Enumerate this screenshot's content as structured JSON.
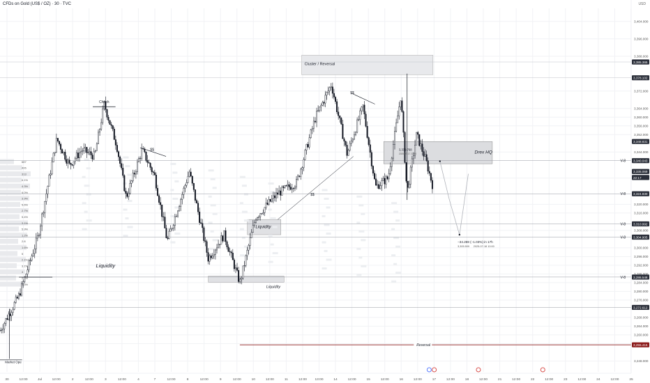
{
  "header": {
    "title": "CFDs on Gold (US$ / OZ) · 30 · TVC",
    "currency": "USD"
  },
  "chart_data": {
    "type": "candlestick",
    "series_label": "",
    "ylim": [
      3243,
      3410
    ],
    "y_ticks": [
      3404,
      3396,
      3388,
      3372,
      3364,
      3360,
      3356,
      3352,
      3344,
      3332,
      3320,
      3316,
      3308,
      3300,
      3296,
      3292,
      3288,
      3284,
      3280,
      3276,
      3268,
      3264,
      3260,
      3256,
      3248
    ],
    "y_tick_labels": [
      "3,404.000",
      "3,396.000",
      "3,388.000",
      "3,372.000",
      "3,364.000",
      "3,360.000",
      "3,356.000",
      "3,352.000",
      "3,344.000",
      "3,332.000",
      "3,320.000",
      "3,316.000",
      "3,308.000",
      "3,300.000",
      "3,296.000",
      "3,292.000",
      "3,288.000",
      "3,284.000",
      "3,280.000",
      "3,276.000",
      "3,268.000",
      "3,264.000",
      "3,260.000",
      "3,256.000",
      "3,248.000"
    ],
    "x_tick_labels": [
      "30",
      "12:00",
      "Jul",
      "12:00",
      "2",
      "12:00",
      "3",
      "12:00",
      "4",
      "7",
      "12:00",
      "8",
      "12:00",
      "9",
      "12:00",
      "10",
      "12:00",
      "11",
      "12:00",
      "13:00",
      "14",
      "12:00",
      "15",
      "12:00",
      "16",
      "12:00",
      "17",
      "12:00",
      "18",
      "12:00",
      "21",
      "12:00",
      "22",
      "12:00",
      "23",
      "12:00",
      "24",
      "12:00",
      "25"
    ],
    "price_tags": [
      {
        "label": "3,385.365",
        "value": 3385.365,
        "style": "dark"
      },
      {
        "label": "3,378.102",
        "value": 3378.102,
        "style": "dark"
      },
      {
        "label": "3,348.831",
        "value": 3348.831,
        "style": "dark"
      },
      {
        "label": "3,340.043",
        "value": 3340.043,
        "style": "dark"
      },
      {
        "label": "3,335.069",
        "value": 3335.069,
        "style": "dark"
      },
      {
        "label": "22:17",
        "value": 3332.3,
        "style": "dark"
      },
      {
        "label": "3,324.830",
        "value": 3324.83,
        "style": "dark"
      },
      {
        "label": "3,310.992",
        "value": 3310.992,
        "style": "dark"
      },
      {
        "label": "3,304.905",
        "value": 3304.905,
        "style": "dark"
      },
      {
        "label": "3,286.548",
        "value": 3286.548,
        "style": "dark"
      },
      {
        "label": "3,272.612",
        "value": 3272.612,
        "style": "dark"
      },
      {
        "label": "3,255.415",
        "value": 3255.415,
        "style": "red"
      }
    ],
    "levels": [
      {
        "label": "V-8",
        "value": 3340.043
      },
      {
        "label": "V-8",
        "value": 3324.83
      },
      {
        "label": "V-8",
        "value": 3310.992
      },
      {
        "label": "V-8",
        "value": 3304.905
      },
      {
        "label": "V-8",
        "value": 3286.548
      }
    ],
    "annotations": {
      "choch": "Choch",
      "cluster": "Cluster / Reversal",
      "drex": "Drex HQ",
      "liquidity_left": "Liquidity",
      "liquidity_mid": "Liquidity",
      "liquidity_bottom": "Liquidity",
      "reversal": "Reversal",
      "dollar_1": "$$",
      "dollar_2": "$$",
      "dollar_3": "$$",
      "market_open": "Market Ope",
      "price_point": "3,339.768",
      "price_point_date": "2025-07-17 22:30",
      "target_line1": "−34.259 (−1.03%) in 17h",
      "target_line2": "3,305.509",
      "target_line3": "2025-07-18  10:00"
    },
    "volume_profile_labels": [
      "687",
      "426",
      "313",
      "6.1%",
      "4.3%",
      "6.0%",
      "3.9%",
      "5.6%",
      "2.7%",
      "5.4%",
      "3.1%",
      "5.9%",
      "1.2%",
      "2.8",
      "1.6%",
      "5",
      "2.1%",
      "3.1%",
      "4",
      "2.4%",
      "3.3%"
    ],
    "key_prices": [
      {
        "x": 0.0,
        "y": 3262
      },
      {
        "x": 0.03,
        "y": 3278
      },
      {
        "x": 0.06,
        "y": 3305
      },
      {
        "x": 0.09,
        "y": 3350
      },
      {
        "x": 0.11,
        "y": 3338
      },
      {
        "x": 0.13,
        "y": 3345
      },
      {
        "x": 0.15,
        "y": 3342
      },
      {
        "x": 0.165,
        "y": 3366
      },
      {
        "x": 0.185,
        "y": 3347
      },
      {
        "x": 0.2,
        "y": 3323
      },
      {
        "x": 0.225,
        "y": 3345
      },
      {
        "x": 0.245,
        "y": 3333
      },
      {
        "x": 0.265,
        "y": 3303
      },
      {
        "x": 0.3,
        "y": 3335
      },
      {
        "x": 0.33,
        "y": 3295
      },
      {
        "x": 0.355,
        "y": 3306
      },
      {
        "x": 0.38,
        "y": 3284
      },
      {
        "x": 0.405,
        "y": 3314
      },
      {
        "x": 0.44,
        "y": 3325
      },
      {
        "x": 0.47,
        "y": 3330
      },
      {
        "x": 0.5,
        "y": 3360
      },
      {
        "x": 0.525,
        "y": 3375
      },
      {
        "x": 0.55,
        "y": 3343
      },
      {
        "x": 0.575,
        "y": 3365
      },
      {
        "x": 0.595,
        "y": 3328
      },
      {
        "x": 0.615,
        "y": 3332
      },
      {
        "x": 0.635,
        "y": 3370
      },
      {
        "x": 0.645,
        "y": 3325
      },
      {
        "x": 0.66,
        "y": 3352
      },
      {
        "x": 0.675,
        "y": 3340
      },
      {
        "x": 0.685,
        "y": 3329
      }
    ],
    "projection": [
      {
        "x": 0.697,
        "y": 3339.768
      },
      {
        "x": 0.712,
        "y": 3322
      },
      {
        "x": 0.728,
        "y": 3306
      },
      {
        "x": 0.742,
        "y": 3334
      }
    ]
  }
}
